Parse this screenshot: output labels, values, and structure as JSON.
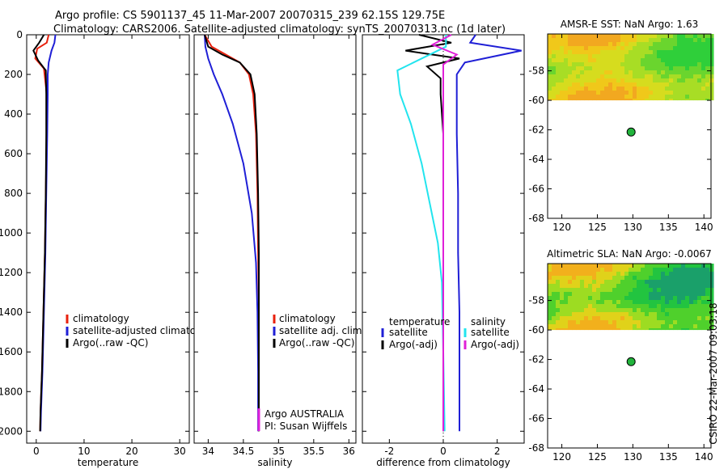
{
  "title_line1": "Argo profile: CS 5901137_45 11-Mar-2007 20070315_239 62.15S 129.75E",
  "title_line2": "Climatology: CARS2006. Satellite-adjusted climatology: synTS_20070313.nc (1d later)",
  "colors": {
    "red": "#e8200c",
    "blue": "#1f1fd6",
    "black": "#000000",
    "cyan": "#22e4ee",
    "magenta": "#e020d8",
    "dot": "#22b43c"
  },
  "chart_data": [
    {
      "id": "temperature",
      "type": "line",
      "xlabel": "temperature",
      "xlim": [
        -2,
        32
      ],
      "xticks": [
        0,
        10,
        20,
        30
      ],
      "ylim": [
        0,
        2060
      ],
      "yticks": [
        0,
        200,
        400,
        600,
        800,
        1000,
        1200,
        1400,
        1600,
        1800,
        2000
      ],
      "legend": [
        "climatology",
        "satellite-adjusted climatology",
        "Argo(..raw -QC)"
      ],
      "series": [
        {
          "name": "climatology",
          "color": "red",
          "x": [
            2.6,
            2.2,
            0.2,
            -0.2,
            1.6,
            2.2,
            2.2,
            2.0,
            1.8,
            1.5,
            1.2,
            0.9,
            0.8
          ],
          "y": [
            0,
            40,
            70,
            120,
            170,
            300,
            500,
            800,
            1100,
            1400,
            1700,
            1900,
            2000
          ]
        },
        {
          "name": "satellite-adjusted climatology",
          "color": "blue",
          "x": [
            4.0,
            3.8,
            3.2,
            2.6,
            2.4,
            2.4,
            2.3,
            2.1,
            1.9,
            1.6,
            1.3,
            1.0,
            0.9
          ],
          "y": [
            0,
            40,
            80,
            140,
            200,
            300,
            500,
            800,
            1100,
            1400,
            1700,
            1900,
            2000
          ]
        },
        {
          "name": "Argo(..raw -QC)",
          "color": "black",
          "x": [
            1.6,
            0.6,
            -0.6,
            0.4,
            2.0,
            2.1,
            2.1,
            2.0,
            1.8,
            1.5,
            1.2,
            0.9,
            0.8
          ],
          "y": [
            0,
            40,
            80,
            130,
            180,
            300,
            500,
            800,
            1100,
            1400,
            1700,
            1900,
            2000
          ]
        }
      ]
    },
    {
      "id": "salinity",
      "type": "line",
      "xlabel": "salinity",
      "xlim": [
        33.8,
        36.1
      ],
      "xticks": [
        34,
        34.5,
        35,
        35.5,
        36
      ],
      "xtick_labels": [
        "34",
        "34.5",
        "35",
        "35.5",
        "36"
      ],
      "ylim": [
        0,
        2060
      ],
      "legend": [
        "climatology",
        "satellite adj. clim.",
        "Argo(..raw -QC)"
      ],
      "credit": [
        "Argo AUSTRALIA",
        "PI: Susan Wijffels"
      ],
      "series": [
        {
          "name": "climatology",
          "color": "red",
          "x": [
            33.95,
            34.05,
            34.25,
            34.45,
            34.58,
            34.64,
            34.68,
            34.7,
            34.71,
            34.72,
            34.72,
            34.72
          ],
          "y": [
            0,
            60,
            100,
            140,
            200,
            300,
            500,
            800,
            1100,
            1400,
            1700,
            2000
          ]
        },
        {
          "name": "satellite adj. clim.",
          "color": "blue",
          "x": [
            33.95,
            33.96,
            34.0,
            34.08,
            34.2,
            34.35,
            34.5,
            34.62,
            34.68,
            34.7,
            34.71,
            34.71
          ],
          "y": [
            0,
            60,
            120,
            200,
            300,
            450,
            650,
            900,
            1150,
            1400,
            1700,
            2000
          ]
        },
        {
          "name": "Argo(..raw -QC)",
          "color": "black",
          "x": [
            33.95,
            34.0,
            34.2,
            34.45,
            34.6,
            34.66,
            34.69,
            34.71,
            34.72,
            34.72,
            34.72,
            34.72
          ],
          "y": [
            0,
            60,
            100,
            140,
            200,
            300,
            500,
            800,
            1100,
            1400,
            1700,
            2000
          ]
        }
      ]
    },
    {
      "id": "difference",
      "type": "line",
      "xlabel": "difference from climatology",
      "xlim": [
        -3,
        3
      ],
      "xticks": [
        -2,
        0,
        2
      ],
      "ylim": [
        0,
        2060
      ],
      "legend_left": {
        "title": "temperature",
        "items": [
          "satellite",
          "Argo(-adj)"
        ]
      },
      "legend_right": {
        "title": "salinity",
        "items": [
          "satellite",
          "Argo(-adj)"
        ]
      },
      "series": [
        {
          "name": "temperature satellite",
          "color": "blue",
          "x": [
            1.2,
            1.0,
            2.9,
            0.8,
            0.5,
            0.5,
            0.5,
            0.55,
            0.55,
            0.6,
            0.6,
            0.6
          ],
          "y": [
            0,
            40,
            80,
            140,
            200,
            300,
            500,
            800,
            1100,
            1400,
            1700,
            2000
          ]
        },
        {
          "name": "temperature Argo(-adj)",
          "color": "black",
          "x": [
            -0.9,
            0.3,
            -1.4,
            0.6,
            -0.6,
            -0.1,
            -0.1,
            0,
            0,
            0,
            0,
            0
          ],
          "y": [
            0,
            40,
            80,
            120,
            160,
            220,
            300,
            500,
            800,
            1200,
            1600,
            2000
          ]
        },
        {
          "name": "salinity satellite",
          "color": "cyan",
          "x": [
            0.1,
            0.1,
            -1.7,
            -1.6,
            -1.2,
            -0.8,
            -0.5,
            -0.2,
            -0.05,
            0.0,
            0.05
          ],
          "y": [
            0,
            60,
            180,
            300,
            450,
            650,
            850,
            1050,
            1250,
            1600,
            2000
          ]
        },
        {
          "name": "salinity Argo(-adj)",
          "color": "magenta",
          "x": [
            0.3,
            -0.4,
            0.5,
            0.0,
            0.0,
            0.0,
            0.0,
            0.0
          ],
          "y": [
            0,
            50,
            100,
            150,
            300,
            800,
            1400,
            2000
          ]
        }
      ]
    },
    {
      "id": "sst_map",
      "type": "heatmap",
      "title": "AMSR-E SST: NaN Argo: 1.63",
      "xlim": [
        118,
        141
      ],
      "xticks": [
        120,
        125,
        130,
        135,
        140
      ],
      "ylim": [
        -68,
        -55.5
      ],
      "yticks": [
        -58,
        -60,
        -62,
        -64,
        -66,
        -68
      ],
      "data_lat_range": [
        -60,
        -55.5
      ],
      "argo_point": {
        "lon": 129.75,
        "lat": -62.15
      }
    },
    {
      "id": "sla_map",
      "type": "heatmap",
      "title": "Altimetric SLA: NaN Argo: -0.0067",
      "xlim": [
        118,
        141
      ],
      "xticks": [
        120,
        125,
        130,
        135,
        140
      ],
      "ylim": [
        -68,
        -55.5
      ],
      "yticks": [
        -58,
        -60,
        -62,
        -64,
        -66,
        -68
      ],
      "data_lat_range": [
        -60,
        -55.5
      ],
      "argo_point": {
        "lon": 129.75,
        "lat": -62.15
      }
    }
  ],
  "footer_credit": "CSIRO 22-Mar-2007 09:03:18"
}
